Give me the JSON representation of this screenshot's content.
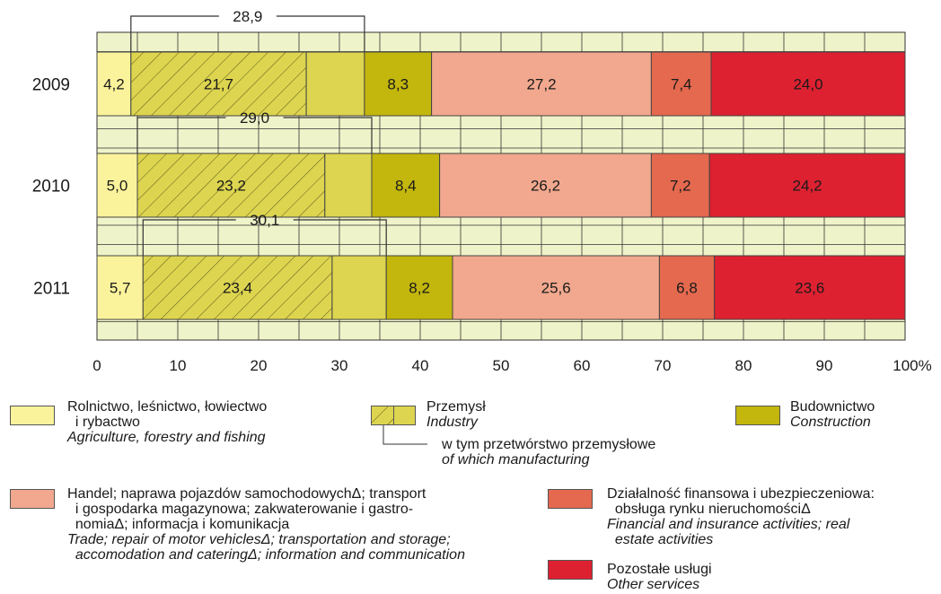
{
  "chart_data": {
    "type": "bar",
    "orientation": "horizontal",
    "stacked": true,
    "categories": [
      "2009",
      "2010",
      "2011"
    ],
    "series": [
      {
        "key": "agriculture",
        "values": [
          4.2,
          5.0,
          5.7
        ],
        "labels": [
          "4,2",
          "5,0",
          "5,7"
        ],
        "color": "#fbf39b"
      },
      {
        "key": "manufacturing",
        "values": [
          21.7,
          23.2,
          23.4
        ],
        "labels": [
          "21,7",
          "23,2",
          "23,4"
        ],
        "color": "#ddd54f",
        "hatched": true
      },
      {
        "key": "industry_other",
        "values": [
          7.2,
          5.8,
          6.7
        ],
        "labels": [
          "",
          "",
          ""
        ],
        "color": "#ddd54f"
      },
      {
        "key": "construction",
        "values": [
          8.3,
          8.4,
          8.2
        ],
        "labels": [
          "8,3",
          "8,4",
          "8,2"
        ],
        "color": "#c3b60d"
      },
      {
        "key": "trade",
        "values": [
          27.2,
          26.2,
          25.6
        ],
        "labels": [
          "27,2",
          "26,2",
          "25,6"
        ],
        "color": "#f1a88e"
      },
      {
        "key": "finance",
        "values": [
          7.4,
          7.2,
          6.8
        ],
        "labels": [
          "7,4",
          "7,2",
          "6,8"
        ],
        "color": "#e4694f"
      },
      {
        "key": "other",
        "values": [
          24.0,
          24.2,
          23.6
        ],
        "labels": [
          "24,0",
          "24,2",
          "23,6"
        ],
        "color": "#dd2131"
      }
    ],
    "industry_totals": [
      "28,9",
      "29,0",
      "30,1"
    ],
    "x_ticks": [
      "0",
      "10",
      "20",
      "30",
      "40",
      "50",
      "60",
      "70",
      "80",
      "90",
      "100%"
    ],
    "xlim": [
      0,
      100
    ],
    "grid": true,
    "background_color": "#eff3c9"
  },
  "legend": {
    "agriculture": {
      "pl": "Rolnictwo, leśnictwo, łowiectwo\n  i rybactwo",
      "en": "Agriculture, forestry and fishing"
    },
    "industry": {
      "pl": "Przemysł",
      "en": "Industry"
    },
    "manufacturing": {
      "pl": "w tym przetwórstwo przemysłowe",
      "en": "of which manufacturing"
    },
    "construction": {
      "pl": "Budownictwo",
      "en": "Construction"
    },
    "trade": {
      "pl": "Handel; naprawa pojazdów samochodowychΔ; transport\n  i gospodarka magazynowa; zakwaterowanie i gastro-\n  nomiaΔ; informacja i komunikacja",
      "en": "Trade; repair of motor vehiclesΔ; transportation and storage;\n  accomodation and cateringΔ; information and communication"
    },
    "finance": {
      "pl": "Działalność finansowa i ubezpieczeniowa:\n  obsługa rynku nieruchomościΔ",
      "en": "Financial and insurance activities; real\n  estate activities"
    },
    "other": {
      "pl": "Pozostałe usługi",
      "en": "Other services"
    }
  }
}
